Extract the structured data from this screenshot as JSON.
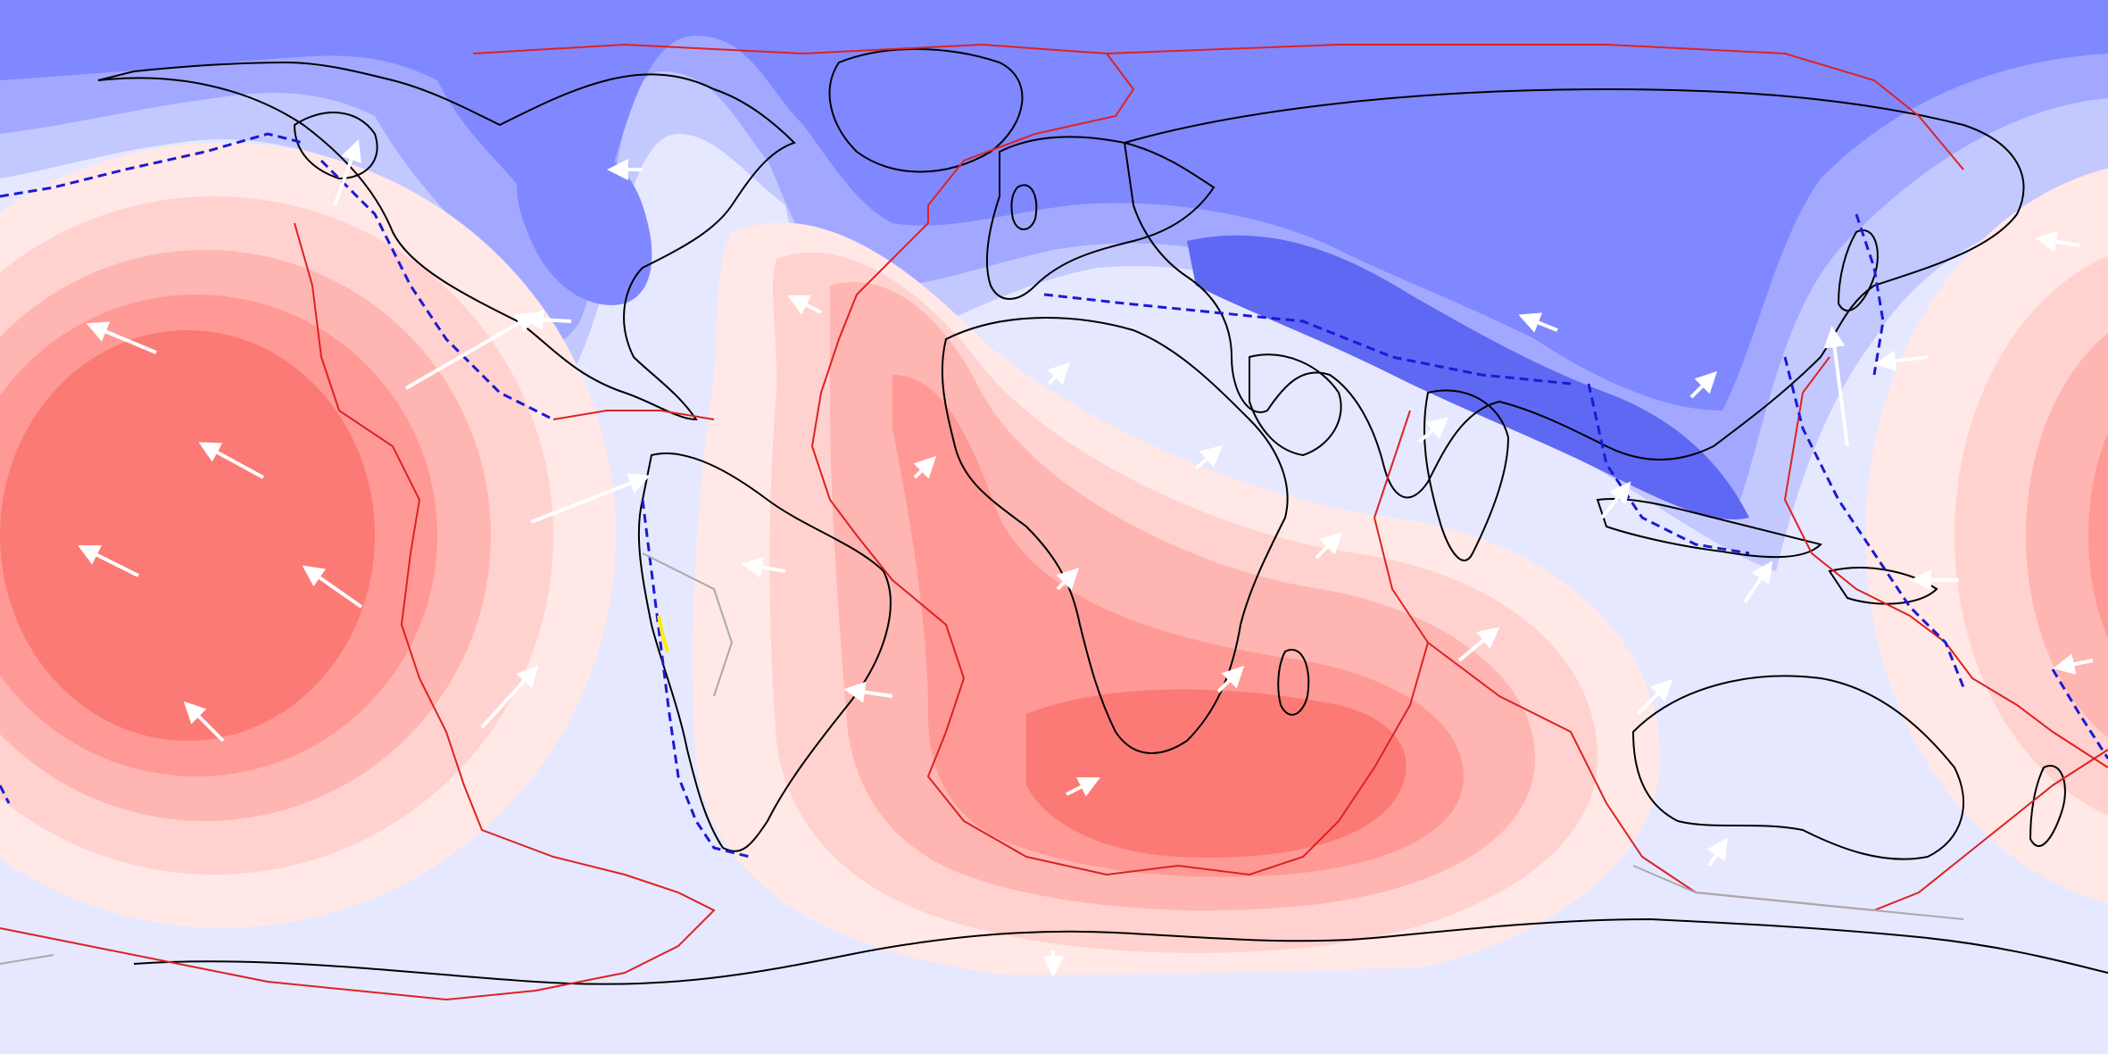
{
  "map": {
    "projection": "equirectangular",
    "extent": {
      "lon": [
        -180,
        180
      ],
      "lat": [
        -90,
        90
      ]
    },
    "center_longitude": 150,
    "colors": {
      "background": "#e6e8ff",
      "anomaly_negative": [
        "#dfe2ff",
        "#c3c8ff",
        "#a2a8ff",
        "#8088ff",
        "#5f68f2"
      ],
      "anomaly_positive": [
        "#ffe8e6",
        "#ffd2cf",
        "#ffb5b1",
        "#ff9995",
        "#fb7a76"
      ],
      "coastline": "#000000",
      "plate_boundary": "#dd2222",
      "subduction_zone": "#1a1ad6",
      "velocity_arrow": "#ffffff",
      "minor_boundary": "#aaaaaa",
      "highlight": "#ffee00"
    },
    "layers": [
      "anomaly-field",
      "coastlines",
      "plate-boundaries",
      "subduction-zones",
      "velocity-vectors"
    ],
    "legend": "none",
    "labels": "none",
    "grid": false
  }
}
